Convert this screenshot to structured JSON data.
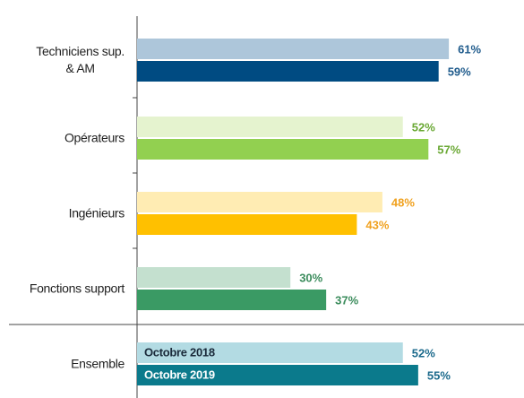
{
  "chart_data": {
    "type": "hbar",
    "categories": [
      "Techniciens sup.\n& AM",
      "Opérateurs",
      "Ingénieurs",
      "Fonctions support",
      "Ensemble"
    ],
    "series": [
      {
        "name": "Octobre 2018",
        "colors": [
          "#adc6da",
          "#e5f3cf",
          "#ffecb3",
          "#c4e0cf",
          "#b3dbe3"
        ],
        "label_colors": [
          "#1f5b8c",
          "#6aa834",
          "#f0a11e",
          "#3b8c5c",
          "#1c6a8c"
        ],
        "values": [
          61,
          52,
          48,
          30,
          52
        ],
        "value_labels": [
          "61%",
          "52%",
          "48%",
          "30%",
          "52%"
        ]
      },
      {
        "name": "Octobre 2019",
        "colors": [
          "#004b82",
          "#92d050",
          "#ffc000",
          "#3a9a64",
          "#0b7a8c"
        ],
        "label_colors": [
          "#1f5b8c",
          "#6aa834",
          "#f0a11e",
          "#3b8c5c",
          "#1c6a8c"
        ],
        "values": [
          59,
          57,
          43,
          37,
          55
        ],
        "value_labels": [
          "59%",
          "57%",
          "43%",
          "37%",
          "55%"
        ]
      }
    ],
    "xlim": [
      0,
      75
    ]
  }
}
